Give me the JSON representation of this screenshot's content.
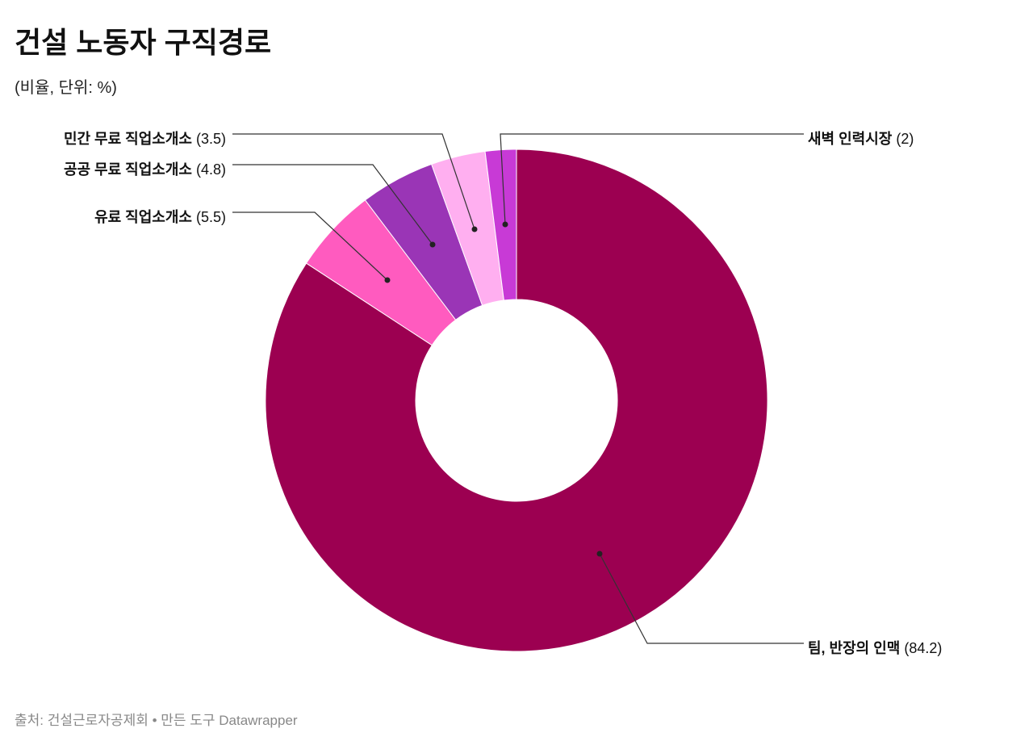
{
  "title": "건설 노동자 구직경로",
  "subtitle": "(비율, 단위: %)",
  "source": "출처: 건설근로자공제회 • 만든 도구 Datawrapper",
  "chart_data": {
    "type": "donut",
    "slices": [
      {
        "name": "팀, 반장의 인맥",
        "value": 84.2,
        "value_label": "(84.2)",
        "color": "#9c0051"
      },
      {
        "name": "유료 직업소개소",
        "value": 5.5,
        "value_label": "(5.5)",
        "color": "#ff5bbf"
      },
      {
        "name": "공공 무료 직업소개소",
        "value": 4.8,
        "value_label": "(4.8)",
        "color": "#9a35b6"
      },
      {
        "name": "민간 무료 직업소개소",
        "value": 3.5,
        "value_label": "(3.5)",
        "color": "#ffaff0"
      },
      {
        "name": "새벽 인력시장",
        "value": 2,
        "value_label": "(2)",
        "color": "#c83ad6"
      }
    ]
  }
}
